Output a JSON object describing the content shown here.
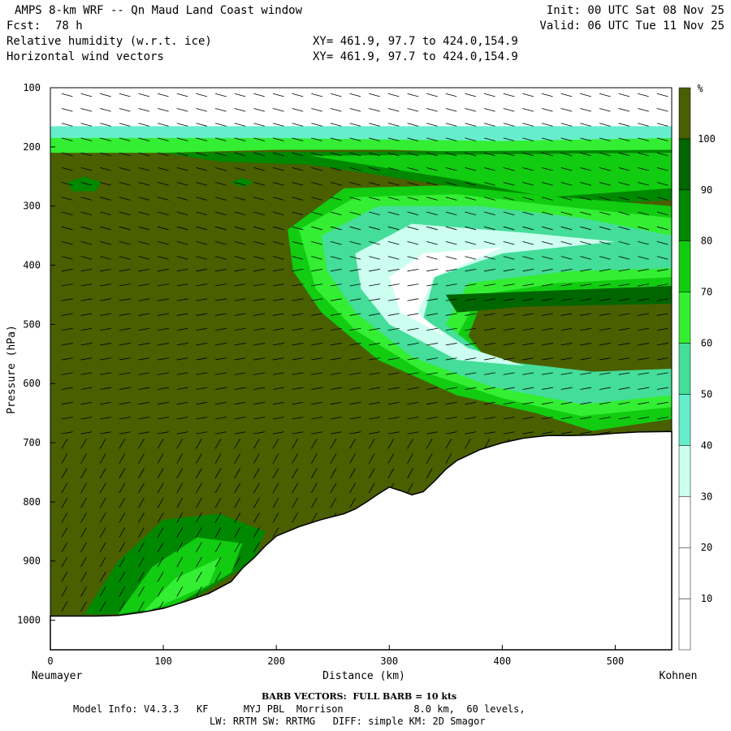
{
  "header": {
    "title": "AMPS 8-km WRF -- Qn Maud Land Coast window",
    "forecast_label": "Fcst:",
    "forecast_value": "78 h",
    "field1": "Relative humidity (w.r.t. ice)",
    "field2": "Horizontal wind vectors",
    "init": "Init: 00 UTC Sat 08 Nov 25",
    "valid": "Valid: 06 UTC Tue 11 Nov 25",
    "xy1": "XY= 461.9, 97.7 to 424.0,154.9",
    "xy2": "XY= 461.9, 97.7 to 424.0,154.9"
  },
  "footer": {
    "barb_note": "BARB VECTORS:  FULL BARB = 10 kts",
    "model_info_label": "Model Info:",
    "model_info_line1": "V4.3.3   KF      MYJ PBL  Morrison            8.0 km,  60 levels,",
    "model_info_line2": "LW: RRTM SW: RRTMG   DIFF: simple KM: 2D Smagor"
  },
  "chart_data": {
    "type": "heatmap",
    "title": "Relative humidity (w.r.t. ice)",
    "xlabel": "Distance (km)",
    "ylabel": "Pressure (hPa)",
    "x_left_label": "Neumayer",
    "x_right_label": "Kohnen",
    "xlim": [
      0,
      550
    ],
    "ylim": [
      1050,
      100
    ],
    "x_ticks": [
      0,
      100,
      200,
      300,
      400,
      500
    ],
    "y_ticks": [
      100,
      200,
      300,
      400,
      500,
      600,
      700,
      800,
      900,
      1000
    ],
    "colorbar": {
      "unit": "%",
      "levels": [
        10,
        20,
        30,
        40,
        50,
        60,
        70,
        80,
        90,
        100
      ],
      "colors": [
        "#ffffff",
        "#ffffff",
        "#ffffff",
        "#ccfff0",
        "#66eecc",
        "#44dd99",
        "#33ee33",
        "#11cc11",
        "#008800",
        "#006600",
        "#4a5f00"
      ]
    },
    "terrain_surface_hPa": [
      [
        0,
        993
      ],
      [
        20,
        993
      ],
      [
        40,
        993
      ],
      [
        60,
        992
      ],
      [
        80,
        987
      ],
      [
        100,
        980
      ],
      [
        120,
        968
      ],
      [
        140,
        955
      ],
      [
        160,
        935
      ],
      [
        170,
        912
      ],
      [
        180,
        895
      ],
      [
        190,
        875
      ],
      [
        200,
        858
      ],
      [
        220,
        842
      ],
      [
        240,
        830
      ],
      [
        260,
        820
      ],
      [
        270,
        812
      ],
      [
        280,
        800
      ],
      [
        290,
        787
      ],
      [
        300,
        775
      ],
      [
        310,
        781
      ],
      [
        320,
        788
      ],
      [
        330,
        783
      ],
      [
        340,
        765
      ],
      [
        350,
        745
      ],
      [
        360,
        730
      ],
      [
        380,
        712
      ],
      [
        400,
        700
      ],
      [
        420,
        692
      ],
      [
        440,
        688
      ],
      [
        460,
        688
      ],
      [
        480,
        687
      ],
      [
        500,
        684
      ],
      [
        520,
        682
      ],
      [
        550,
        681
      ]
    ]
  }
}
